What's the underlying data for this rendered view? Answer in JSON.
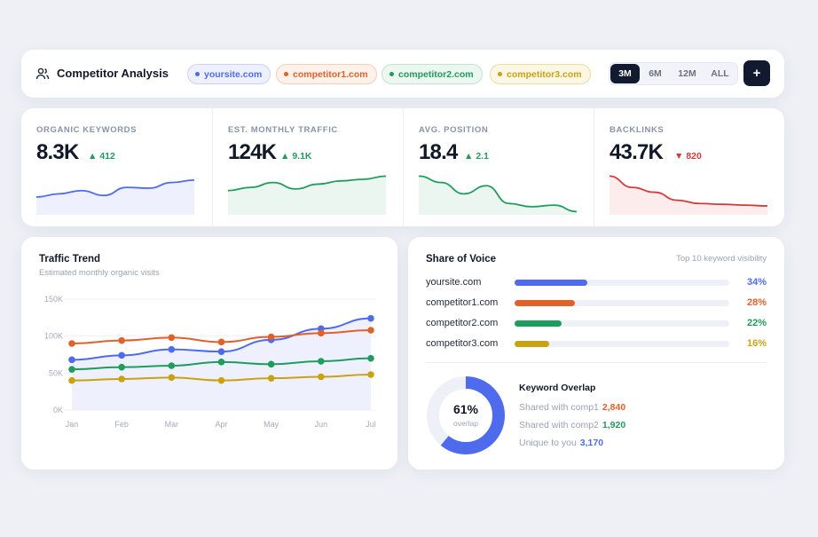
{
  "header": {
    "title": "Competitor Analysis",
    "icon": "users-icon",
    "domains": [
      {
        "label": "yoursite.com",
        "color": "#4f6bed",
        "bg": "#eef1fd",
        "border": "#c8d1f8"
      },
      {
        "label": "competitor1.com",
        "color": "#e0622a",
        "bg": "#fdf1ea",
        "border": "#f5cdb7"
      },
      {
        "label": "competitor2.com",
        "color": "#1f9d5c",
        "bg": "#ebf7f0",
        "border": "#bfe5cf"
      },
      {
        "label": "competitor3.com",
        "color": "#c9a211",
        "bg": "#fcf7e4",
        "border": "#eddc9d"
      }
    ],
    "ranges": [
      "3M",
      "6M",
      "12M",
      "ALL"
    ],
    "active_range": "3M",
    "add_label": "+"
  },
  "kpis": [
    {
      "label": "ORGANIC KEYWORDS",
      "value": "8.3K",
      "delta": "412",
      "direction": "up",
      "color": "#4f6bed",
      "fill": "#eef1fd",
      "spark": [
        22,
        26,
        30,
        24,
        34,
        33,
        40,
        43
      ]
    },
    {
      "label": "EST. MONTHLY TRAFFIC",
      "value": "124K",
      "delta": "9.1K",
      "direction": "up",
      "color": "#1f9d5c",
      "fill": "#eaf6ef",
      "spark": [
        30,
        34,
        40,
        32,
        38,
        42,
        44,
        48
      ]
    },
    {
      "label": "AVG. POSITION",
      "value": "18.4",
      "delta": "2.1",
      "direction": "up",
      "color": "#1f9d5c",
      "fill": "#eaf6ef",
      "spark": [
        48,
        40,
        26,
        36,
        14,
        10,
        12,
        4
      ]
    },
    {
      "label": "BACKLINKS",
      "value": "43.7K",
      "delta": "820",
      "direction": "down",
      "color": "#d63a3a",
      "fill": "#fcecec",
      "spark": [
        48,
        34,
        28,
        18,
        14,
        13,
        12,
        11
      ]
    }
  ],
  "trend": {
    "title": "Traffic Trend",
    "subtitle": "Estimated monthly organic visits"
  },
  "chart_data": {
    "type": "line",
    "title": "Traffic Trend",
    "subtitle": "Estimated monthly organic visits",
    "categories": [
      "Jan",
      "Feb",
      "Mar",
      "Apr",
      "May",
      "Jun",
      "Jul"
    ],
    "yticks": [
      "0K",
      "50K",
      "100K",
      "150K"
    ],
    "ylim": [
      0,
      150
    ],
    "grid": true,
    "series": [
      {
        "name": "yoursite.com",
        "color": "#4f6bed",
        "values": [
          68,
          74,
          82,
          79,
          95,
          110,
          124
        ],
        "area": true
      },
      {
        "name": "competitor1.com",
        "color": "#e0622a",
        "values": [
          90,
          94,
          98,
          92,
          99,
          104,
          108
        ]
      },
      {
        "name": "competitor2.com",
        "color": "#1f9d5c",
        "values": [
          55,
          58,
          60,
          65,
          62,
          66,
          70
        ]
      },
      {
        "name": "competitor3.com",
        "color": "#c9a211",
        "values": [
          40,
          42,
          44,
          40,
          43,
          45,
          48
        ]
      }
    ]
  },
  "sov": {
    "title": "Share of Voice",
    "note": "Top 10 keyword visibility",
    "rows": [
      {
        "name": "yoursite.com",
        "pct": "34%",
        "value": 0.34,
        "color": "#4f6bed"
      },
      {
        "name": "competitor1.com",
        "pct": "28%",
        "value": 0.28,
        "color": "#e0622a"
      },
      {
        "name": "competitor2.com",
        "pct": "22%",
        "value": 0.22,
        "color": "#1f9d5c"
      },
      {
        "name": "competitor3.com",
        "pct": "16%",
        "value": 0.16,
        "color": "#c9a211"
      }
    ]
  },
  "overlap": {
    "pct": "61%",
    "value": 0.61,
    "sub": "overlap",
    "title": "Keyword Overlap",
    "rows": [
      {
        "label": "Shared with comp1",
        "value": "2,840",
        "color": "#e0622a"
      },
      {
        "label": "Shared with comp2",
        "value": "1,920",
        "color": "#1f9d5c"
      },
      {
        "label": "Unique to you",
        "value": "3,170",
        "color": "#4f6bed"
      }
    ]
  }
}
